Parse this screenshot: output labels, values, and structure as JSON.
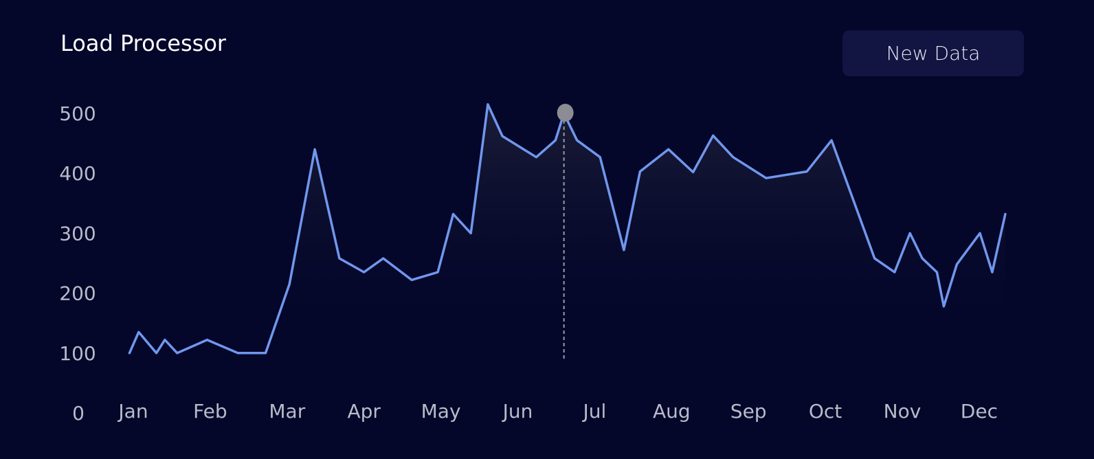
{
  "header": {
    "title": "Load Processor",
    "button_label": "New Data"
  },
  "colors": {
    "background": "#04062a",
    "line": "#7097ec",
    "button": "#121442",
    "marker": "#8c8c94"
  },
  "chart_data": {
    "type": "area",
    "title": "Load Processor",
    "xlabel": "",
    "ylabel": "",
    "ylim": [
      0,
      500
    ],
    "xlim": [
      0,
      11.75
    ],
    "y_ticks": [
      0,
      100,
      200,
      300,
      400,
      500
    ],
    "x_tick_labels": [
      "Jan",
      "Feb",
      "Mar",
      "Apr",
      "May",
      "Jun",
      "Jul",
      "Aug",
      "Sep",
      "Oct",
      "Nov",
      "Dec"
    ],
    "grid": false,
    "legend": "none",
    "series": [
      {
        "x": [
          -0.05,
          0.07,
          0.3,
          0.41,
          0.57,
          0.96,
          1.36,
          1.72,
          2.03,
          2.36,
          2.68,
          3.0,
          3.25,
          3.62,
          3.96,
          4.16,
          4.39,
          4.61,
          4.8,
          5.24,
          5.49,
          5.6,
          5.77,
          6.07,
          6.38,
          6.59,
          6.96,
          7.28,
          7.54,
          7.8,
          8.23,
          8.76,
          9.08,
          9.64,
          9.9,
          10.1,
          10.26,
          10.45,
          10.54,
          10.71,
          11.01,
          11.17,
          11.34
        ],
        "y": [
          100,
          135,
          100,
          122,
          100,
          122,
          100,
          100,
          215,
          440,
          258,
          235,
          258,
          222,
          235,
          332,
          300,
          515,
          462,
          427,
          455,
          500,
          455,
          427,
          272,
          403,
          440,
          402,
          463,
          427,
          392,
          403,
          455,
          258,
          235,
          300,
          258,
          235,
          178,
          248,
          300,
          235,
          332
        ]
      }
    ],
    "highlight": {
      "x": 5.6,
      "y": 500
    }
  }
}
